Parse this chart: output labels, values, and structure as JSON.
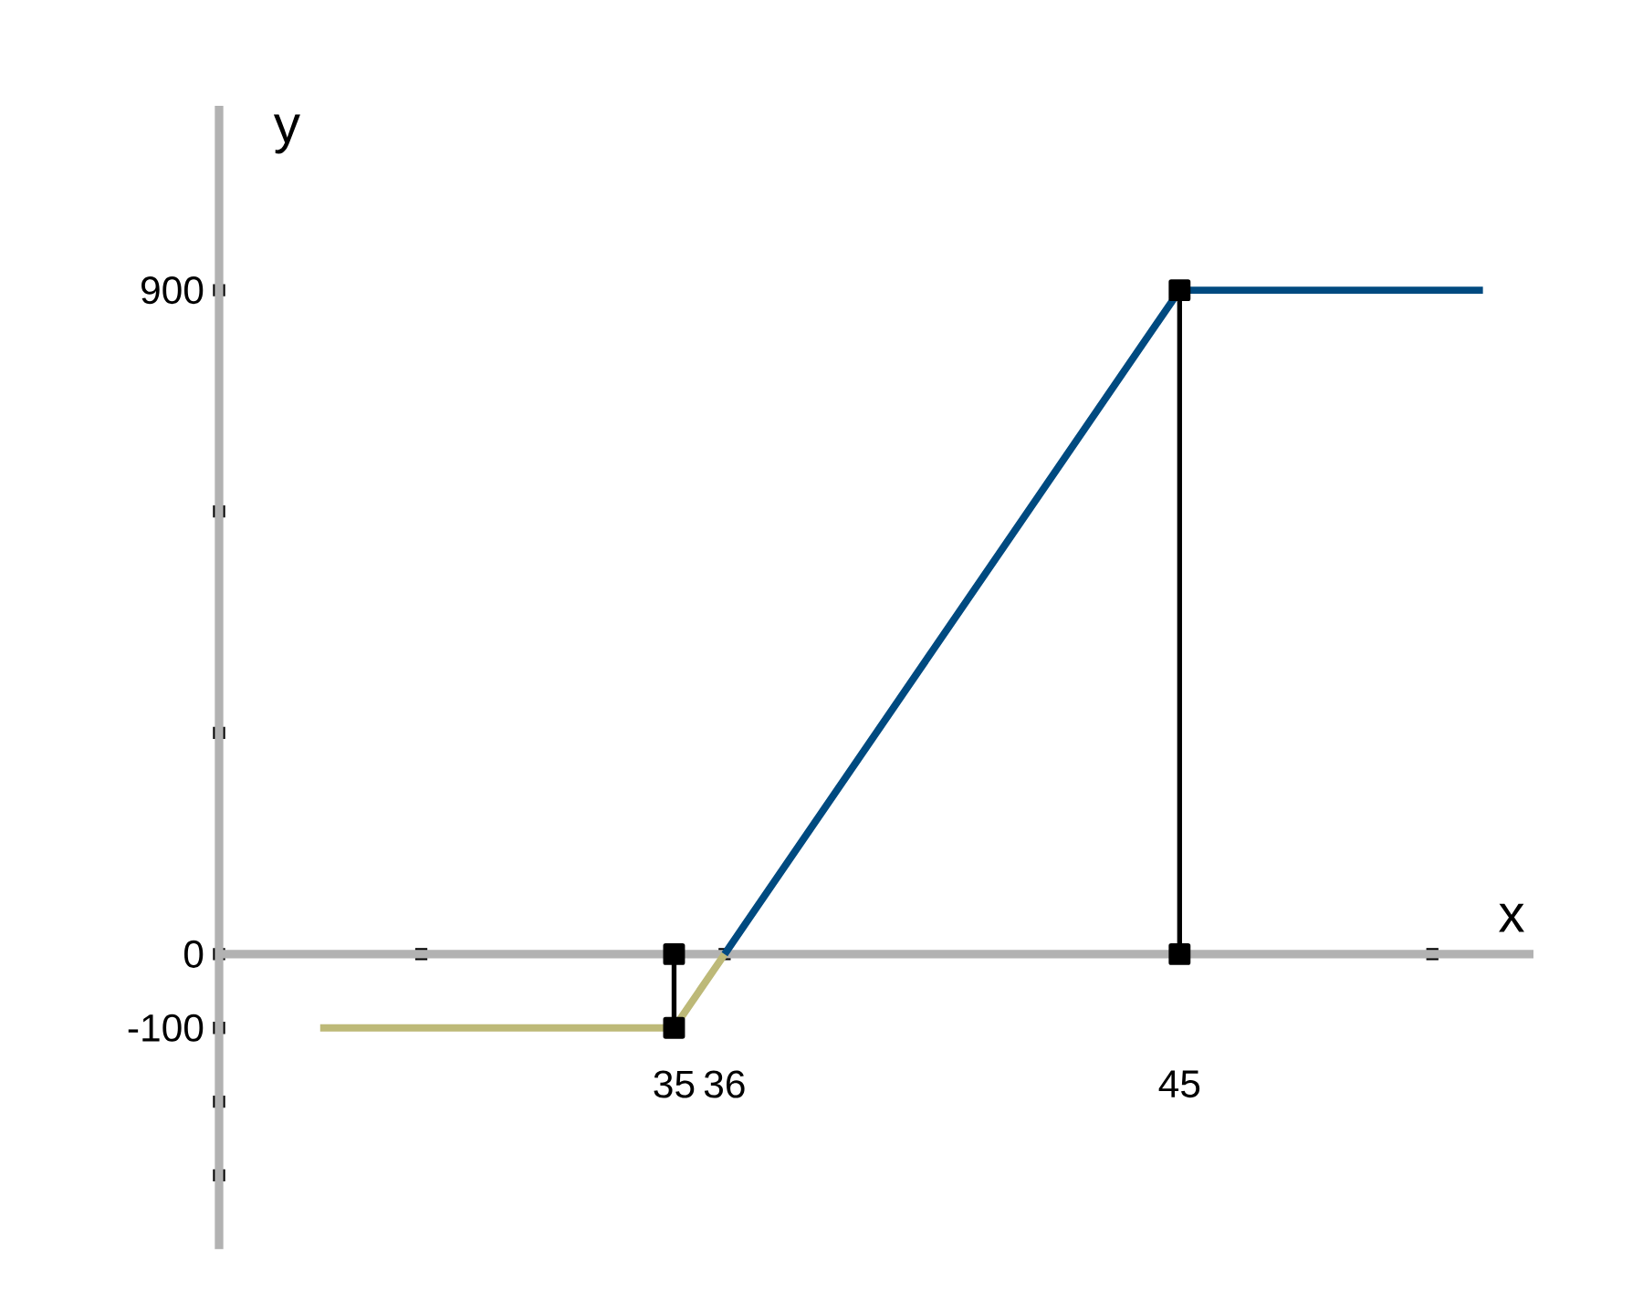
{
  "chart_data": {
    "type": "line",
    "xlabel": "x",
    "ylabel": "y",
    "xlim": [
      26,
      52
    ],
    "ylim": [
      -400,
      1150
    ],
    "xticks": [
      {
        "value": 30,
        "label": null
      },
      35,
      36,
      45,
      {
        "value": 50,
        "label": null
      }
    ],
    "yticks": [
      {
        "value": -300,
        "label": null
      },
      {
        "value": -200,
        "label": null
      },
      -100,
      0,
      {
        "value": 300,
        "label": null
      },
      {
        "value": 600,
        "label": null
      },
      900
    ],
    "series": [
      {
        "color": "#bdb978",
        "x": [
          28,
          35,
          36
        ],
        "values": [
          -100,
          -100,
          0
        ],
        "marker": "none"
      },
      {
        "color": "#004a80",
        "x": [
          36,
          45,
          51
        ],
        "values": [
          0,
          900,
          900
        ],
        "marker": "none"
      },
      {
        "color": "#000000",
        "x": [
          35,
          35
        ],
        "values": [
          0,
          -100
        ],
        "marker": "square"
      },
      {
        "color": "#000000",
        "x": [
          45,
          45
        ],
        "values": [
          0,
          900
        ],
        "marker": "square"
      }
    ]
  }
}
